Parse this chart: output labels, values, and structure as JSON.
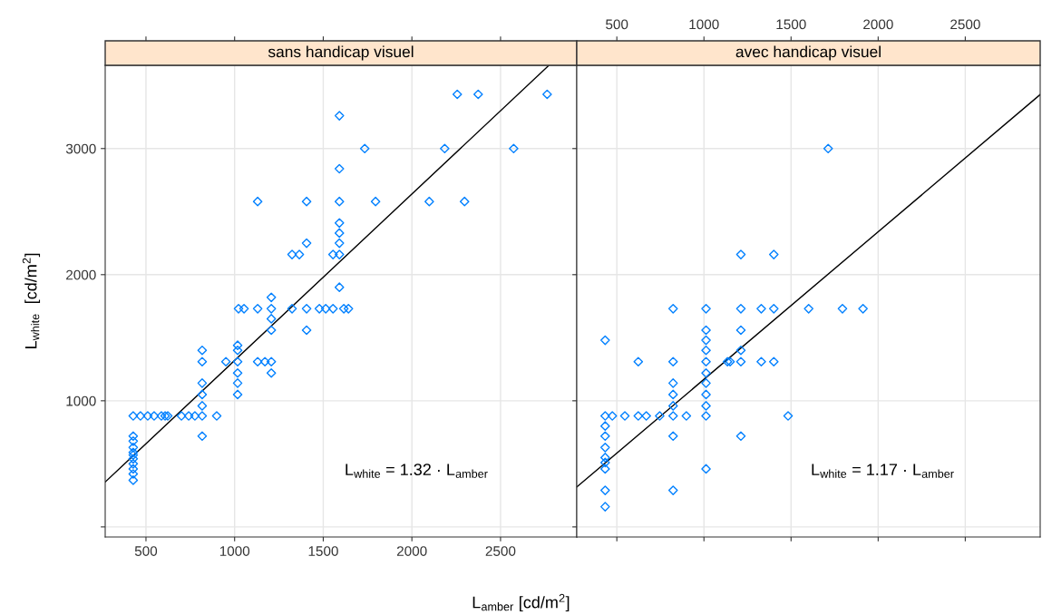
{
  "chart_data": [
    {
      "type": "scatter",
      "title": "sans handicap visuel",
      "xlabel": "L$_{amber}$ [cd/m$^{2}$]",
      "ylabel": "L$_{white}$  [cd/m$^{2}$]",
      "xlim": [
        270,
        2930
      ],
      "ylim": [
        -80,
        3660
      ],
      "xticks": [
        500,
        1000,
        1500,
        2000,
        2500
      ],
      "yticks": [
        {
          "value": 0,
          "label": null
        },
        1000,
        2000,
        3000
      ],
      "grid": true,
      "legend": false,
      "annotations": [
        "L$_{white}$ = 1.32 · L$_{amber}$"
      ],
      "series": [
        {
          "color": "#0080ff",
          "marker": "diamond",
          "x": [
            2256,
            2374,
            2763,
            1734,
            2185,
            2574,
            1795,
            2098,
            2297,
            1591,
            1591,
            1591,
            1591,
            1591,
            1591,
            1591,
            1591,
            1130,
            1406,
            1406,
            1324,
            1365,
            1555,
            1022,
            1053,
            1130,
            1207,
            1324,
            1406,
            1478,
            1514,
            1555,
            1616,
            1642,
            1207,
            1207,
            1207,
            1406,
            1017,
            1017,
            817,
            817,
            951,
            1017,
            1130,
            1171,
            1207,
            1207,
            1017,
            1017,
            1017,
            817,
            817,
            817,
            428,
            469,
            510,
            546,
            587,
            608,
            623,
            700,
            741,
            776,
            817,
            899,
            817,
            428,
            428,
            428,
            428,
            428,
            428,
            428,
            428,
            428,
            428
          ],
          "values": [
            3430,
            3430,
            3430,
            3000,
            3000,
            3000,
            2580,
            2580,
            2580,
            3260,
            2840,
            2580,
            2410,
            2330,
            2250,
            2160,
            1900,
            2580,
            2580,
            2250,
            2160,
            2160,
            2160,
            1730,
            1730,
            1730,
            1730,
            1730,
            1730,
            1730,
            1730,
            1730,
            1730,
            1730,
            1820,
            1650,
            1560,
            1560,
            1440,
            1400,
            1400,
            1310,
            1310,
            1310,
            1310,
            1310,
            1310,
            1220,
            1220,
            1140,
            1050,
            1140,
            1050,
            960,
            880,
            880,
            880,
            880,
            880,
            880,
            880,
            880,
            880,
            880,
            880,
            880,
            720,
            720,
            680,
            630,
            590,
            570,
            540,
            500,
            460,
            420,
            370
          ]
        },
        {
          "type": "line",
          "color": "#000000",
          "x": [
            270,
            2773
          ],
          "values": [
            356,
            3660
          ]
        }
      ]
    },
    {
      "type": "scatter",
      "title": "avec handicap visuel",
      "xlim": [
        270,
        2930
      ],
      "ylim": [
        -80,
        3660
      ],
      "xticks": [
        500,
        1000,
        1500,
        2000,
        2500
      ],
      "yticks": [
        {
          "value": 0,
          "label": null
        },
        1000,
        2000,
        3000
      ],
      "tick_labels": "x",
      "grid": true,
      "legend": false,
      "annotations": [
        "L$_{white}$ = 1.17 · L$_{amber}$"
      ],
      "series": [
        {
          "color": "#0080ff",
          "marker": "diamond",
          "x": [
            1713,
            1212,
            1401,
            823,
            1012,
            1212,
            1329,
            1401,
            1601,
            1795,
            1913,
            1212,
            1012,
            433,
            1012,
            1012,
            1212,
            623,
            823,
            1012,
            1135,
            1150,
            1212,
            1329,
            1401,
            1012,
            823,
            1012,
            823,
            1012,
            823,
            1012,
            433,
            474,
            546,
            623,
            669,
            746,
            823,
            899,
            1012,
            1483,
            433,
            433,
            823,
            1212,
            433,
            433,
            433,
            433,
            1012,
            433,
            823,
            433
          ],
          "values": [
            3000,
            2160,
            2160,
            1730,
            1730,
            1730,
            1730,
            1730,
            1730,
            1730,
            1730,
            1560,
            1560,
            1480,
            1480,
            1400,
            1400,
            1310,
            1310,
            1310,
            1310,
            1310,
            1310,
            1310,
            1310,
            1220,
            1140,
            1140,
            1050,
            1050,
            960,
            960,
            880,
            880,
            880,
            880,
            880,
            880,
            880,
            880,
            880,
            880,
            800,
            720,
            720,
            720,
            630,
            550,
            510,
            460,
            460,
            290,
            290,
            160
          ]
        },
        {
          "type": "line",
          "color": "#000000",
          "x": [
            270,
            2930
          ],
          "values": [
            316,
            3428
          ]
        }
      ]
    }
  ]
}
